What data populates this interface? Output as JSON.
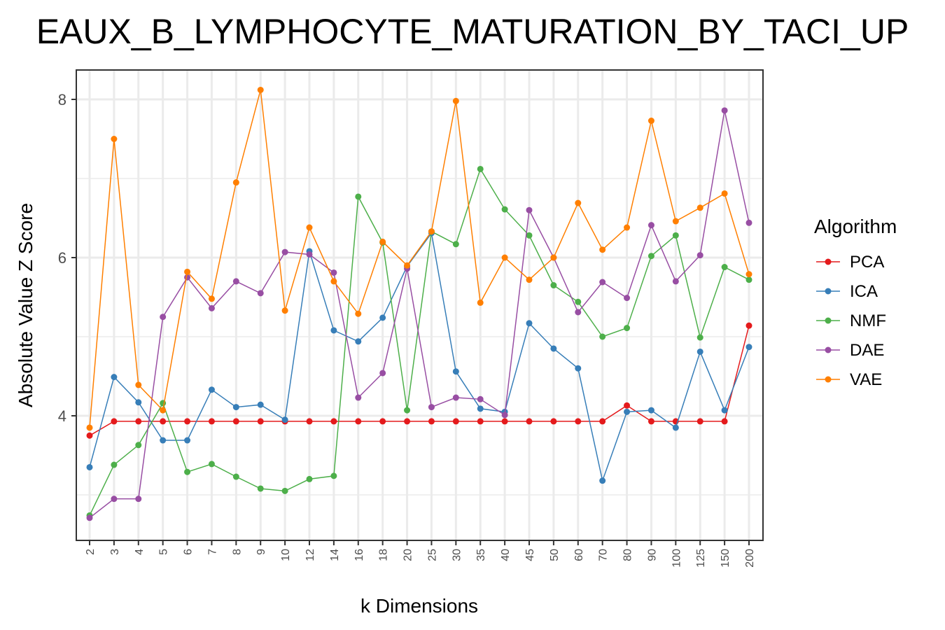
{
  "chart_data": {
    "type": "line",
    "title": "EAUX_B_LYMPHOCYTE_MATURATION_BY_TACI_UP",
    "xlabel": "k Dimensions",
    "ylabel": "Absolute Value Z Score",
    "categories": [
      "2",
      "3",
      "4",
      "5",
      "6",
      "7",
      "8",
      "9",
      "10",
      "12",
      "14",
      "16",
      "18",
      "20",
      "25",
      "30",
      "35",
      "40",
      "45",
      "50",
      "60",
      "70",
      "80",
      "90",
      "100",
      "125",
      "150",
      "200"
    ],
    "y_ticks": [
      "4",
      "6",
      "8"
    ],
    "ylim": [
      2.5,
      8.4
    ],
    "grid": true,
    "legend": {
      "title": "Algorithm",
      "position": "right"
    },
    "series": [
      {
        "name": "PCA",
        "color": "#e41a1c",
        "values": [
          3.75,
          3.93,
          3.93,
          3.93,
          3.93,
          3.93,
          3.93,
          3.93,
          3.93,
          3.93,
          3.93,
          3.93,
          3.93,
          3.93,
          3.93,
          3.93,
          3.93,
          3.93,
          3.93,
          3.93,
          3.93,
          3.93,
          4.13,
          3.93,
          3.93,
          3.93,
          3.93,
          5.14
        ]
      },
      {
        "name": "ICA",
        "color": "#377eb8",
        "values": [
          3.35,
          4.49,
          4.17,
          3.69,
          3.69,
          4.33,
          4.11,
          4.14,
          3.95,
          6.08,
          5.08,
          4.94,
          5.24,
          5.89,
          6.31,
          4.56,
          4.09,
          4.05,
          5.17,
          4.85,
          4.6,
          3.18,
          4.05,
          4.07,
          3.85,
          4.81,
          4.07,
          4.87
        ]
      },
      {
        "name": "NMF",
        "color": "#4daf4a",
        "values": [
          2.74,
          3.38,
          3.63,
          4.16,
          3.29,
          3.39,
          3.23,
          3.08,
          3.05,
          3.2,
          3.24,
          6.77,
          6.19,
          4.07,
          6.33,
          6.17,
          7.12,
          6.61,
          6.28,
          5.65,
          5.44,
          5.0,
          5.11,
          6.02,
          6.28,
          4.99,
          5.88,
          5.72
        ]
      },
      {
        "name": "DAE",
        "color": "#984ea3",
        "values": [
          2.71,
          2.95,
          2.95,
          5.25,
          5.75,
          5.36,
          5.7,
          5.55,
          6.07,
          6.04,
          5.81,
          4.23,
          4.54,
          5.86,
          4.11,
          4.23,
          4.21,
          4.01,
          6.6,
          6.0,
          5.31,
          5.69,
          5.49,
          6.41,
          5.7,
          6.03,
          7.86,
          6.44
        ]
      },
      {
        "name": "VAE",
        "color": "#ff7f00",
        "values": [
          3.85,
          7.5,
          4.39,
          4.07,
          5.82,
          5.48,
          6.95,
          8.12,
          5.33,
          6.38,
          5.7,
          5.29,
          6.2,
          5.9,
          6.33,
          7.98,
          5.43,
          6.0,
          5.72,
          6.0,
          6.69,
          6.1,
          6.38,
          7.73,
          6.46,
          6.63,
          6.81,
          5.79
        ]
      }
    ]
  }
}
